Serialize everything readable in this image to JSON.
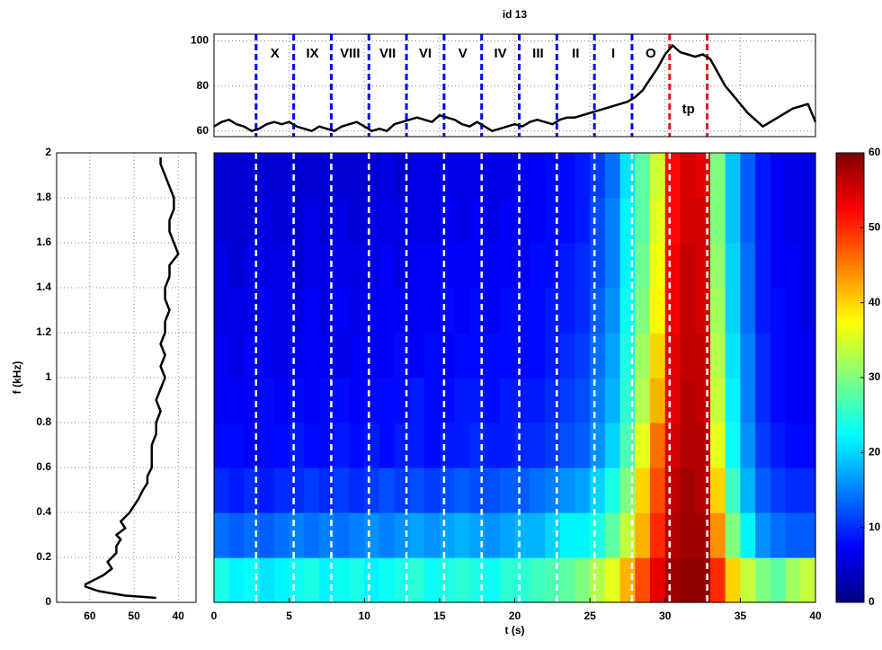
{
  "chart_data": [
    {
      "type": "line",
      "title": "id 13",
      "x": [
        0,
        0.5,
        1,
        1.5,
        2,
        2.5,
        3,
        3.5,
        4,
        4.5,
        5,
        5.5,
        6,
        6.5,
        7,
        7.5,
        8,
        8.5,
        9,
        9.5,
        10,
        10.5,
        11,
        11.5,
        12,
        12.5,
        13,
        13.5,
        14,
        14.5,
        15,
        15.5,
        16,
        16.5,
        17,
        17.5,
        18,
        18.5,
        19,
        19.5,
        20,
        20.5,
        21,
        21.5,
        22,
        22.5,
        23,
        23.5,
        24,
        24.5,
        25,
        25.5,
        26,
        26.5,
        27,
        27.5,
        28,
        28.5,
        29,
        29.5,
        30,
        30.5,
        31,
        31.5,
        32,
        32.5,
        33,
        33.5,
        34,
        34.5,
        35,
        35.5,
        36,
        36.5,
        37,
        37.5,
        38,
        38.5,
        39,
        39.5,
        40
      ],
      "values": [
        62,
        64,
        65,
        63,
        62,
        60,
        61,
        63,
        64,
        63,
        64,
        62,
        61,
        60,
        62,
        61,
        60,
        62,
        63,
        64,
        62,
        60,
        61,
        60,
        63,
        64,
        65,
        66,
        65,
        64,
        67,
        66,
        65,
        63,
        62,
        64,
        62,
        60,
        61,
        62,
        63,
        62,
        64,
        65,
        64,
        63,
        65,
        66,
        66,
        67,
        68,
        69,
        70,
        71,
        72,
        73,
        75,
        78,
        83,
        88,
        94,
        98,
        95,
        94,
        93,
        94,
        92,
        86,
        80,
        76,
        72,
        68,
        65,
        62,
        64,
        66,
        68,
        70,
        71,
        72,
        64
      ],
      "color": "#000000",
      "xlim": [
        0,
        40
      ],
      "ylim": [
        57.5,
        103
      ],
      "yticks": [
        60,
        80,
        100
      ],
      "grid": true,
      "segments": [
        {
          "label": "X",
          "start": 2.8,
          "end": 5.3,
          "color": "#0000ff"
        },
        {
          "label": "IX",
          "start": 5.3,
          "end": 7.8,
          "color": "#0000ff"
        },
        {
          "label": "VIII",
          "start": 7.8,
          "end": 10.3,
          "color": "#0000ff"
        },
        {
          "label": "VII",
          "start": 10.3,
          "end": 12.8,
          "color": "#0000ff"
        },
        {
          "label": "VI",
          "start": 12.8,
          "end": 15.3,
          "color": "#0000ff"
        },
        {
          "label": "V",
          "start": 15.3,
          "end": 17.8,
          "color": "#0000ff"
        },
        {
          "label": "IV",
          "start": 17.8,
          "end": 20.3,
          "color": "#0000ff"
        },
        {
          "label": "III",
          "start": 20.3,
          "end": 22.8,
          "color": "#0000ff"
        },
        {
          "label": "II",
          "start": 22.8,
          "end": 25.3,
          "color": "#0000ff"
        },
        {
          "label": "I",
          "start": 25.3,
          "end": 27.8,
          "color": "#0000ff"
        },
        {
          "label": "O",
          "start": 27.8,
          "end": 30.3,
          "color": "#0000ff"
        },
        {
          "label": "tp",
          "start": 30.3,
          "end": 32.8,
          "color": "#e8141e"
        }
      ]
    },
    {
      "type": "line",
      "ylabel": "f (kHz)",
      "y": [
        0.02,
        0.03,
        0.05,
        0.07,
        0.08,
        0.1,
        0.12,
        0.15,
        0.18,
        0.2,
        0.22,
        0.25,
        0.28,
        0.3,
        0.33,
        0.36,
        0.4,
        0.43,
        0.46,
        0.5,
        0.53,
        0.56,
        0.6,
        0.65,
        0.7,
        0.75,
        0.8,
        0.85,
        0.9,
        0.95,
        1.0,
        1.05,
        1.1,
        1.15,
        1.2,
        1.25,
        1.3,
        1.35,
        1.4,
        1.45,
        1.5,
        1.55,
        1.6,
        1.65,
        1.7,
        1.75,
        1.8,
        1.85,
        1.9,
        1.95,
        1.98
      ],
      "values": [
        45,
        52,
        58,
        61,
        61,
        59,
        57,
        55,
        56,
        55,
        54,
        54,
        53,
        54,
        52,
        53,
        51,
        50,
        49,
        48,
        47,
        47,
        46,
        46,
        46,
        45,
        45,
        44,
        45,
        44,
        43,
        44,
        43,
        44,
        43,
        43,
        42,
        43,
        43,
        42,
        42,
        40,
        41,
        42,
        42,
        41,
        41,
        42,
        43,
        44,
        44
      ],
      "color": "#000000",
      "xlim": [
        67.5,
        36
      ],
      "xticks": [
        60,
        50,
        40
      ],
      "ylim": [
        0,
        2
      ],
      "yticks": [
        0,
        0.2,
        0.4,
        0.6,
        0.8,
        1,
        1.2,
        1.4,
        1.6,
        1.8,
        2
      ],
      "grid": true
    },
    {
      "type": "heatmap",
      "xlabel": "t (s)",
      "colormap": "jet",
      "xlim": [
        0,
        40
      ],
      "xticks": [
        0,
        5,
        10,
        15,
        20,
        25,
        30,
        35,
        40
      ],
      "ylim": [
        0,
        2
      ],
      "clim": [
        0,
        60
      ],
      "cticks": [
        0,
        10,
        20,
        30,
        40,
        50,
        60
      ],
      "z": [
        [
          24,
          22,
          23,
          21,
          22,
          23,
          24,
          22,
          23,
          24,
          22,
          23,
          24,
          25,
          23,
          24,
          25,
          24,
          23,
          25,
          25,
          26,
          27,
          28,
          30,
          33,
          36,
          42,
          48,
          54,
          58,
          59,
          59,
          50,
          40,
          34,
          30,
          28,
          32,
          34
        ],
        [
          14,
          13,
          14,
          13,
          14,
          15,
          14,
          15,
          14,
          15,
          16,
          15,
          16,
          17,
          16,
          17,
          18,
          17,
          16,
          17,
          18,
          18,
          20,
          22,
          22,
          24,
          28,
          34,
          42,
          50,
          57,
          58,
          58,
          44,
          30,
          22,
          16,
          14,
          13,
          13
        ],
        [
          10,
          9,
          10,
          9,
          10,
          10,
          11,
          10,
          11,
          10,
          11,
          12,
          11,
          12,
          11,
          12,
          13,
          12,
          12,
          13,
          13,
          14,
          15,
          16,
          17,
          20,
          24,
          30,
          40,
          48,
          56,
          58,
          57,
          40,
          26,
          18,
          13,
          11,
          10,
          10
        ],
        [
          8,
          8,
          7,
          8,
          8,
          9,
          8,
          8,
          9,
          8,
          9,
          8,
          9,
          9,
          8,
          9,
          9,
          10,
          9,
          9,
          10,
          10,
          11,
          12,
          13,
          16,
          20,
          27,
          36,
          46,
          55,
          57,
          57,
          36,
          23,
          16,
          11,
          9,
          8,
          8
        ],
        [
          7,
          7,
          7,
          8,
          7,
          8,
          7,
          8,
          8,
          7,
          8,
          8,
          8,
          9,
          8,
          8,
          9,
          9,
          8,
          9,
          9,
          9,
          10,
          11,
          12,
          15,
          18,
          25,
          33,
          42,
          54,
          57,
          56,
          34,
          22,
          15,
          10,
          8,
          7,
          7
        ],
        [
          7,
          6,
          7,
          7,
          6,
          7,
          7,
          7,
          6,
          7,
          7,
          7,
          8,
          7,
          8,
          7,
          8,
          8,
          8,
          8,
          8,
          8,
          9,
          10,
          11,
          14,
          17,
          24,
          32,
          40,
          54,
          56,
          56,
          33,
          21,
          15,
          10,
          8,
          7,
          7
        ],
        [
          6,
          6,
          6,
          7,
          6,
          6,
          7,
          6,
          7,
          6,
          7,
          7,
          7,
          7,
          7,
          8,
          7,
          8,
          7,
          8,
          8,
          8,
          9,
          9,
          10,
          13,
          16,
          23,
          30,
          38,
          53,
          56,
          55,
          32,
          20,
          14,
          9,
          8,
          7,
          6
        ],
        [
          6,
          5,
          6,
          6,
          6,
          5,
          6,
          6,
          6,
          6,
          6,
          7,
          6,
          7,
          7,
          7,
          7,
          7,
          7,
          7,
          7,
          8,
          8,
          9,
          10,
          12,
          15,
          22,
          29,
          37,
          53,
          56,
          55,
          31,
          20,
          14,
          9,
          7,
          7,
          6
        ],
        [
          5,
          5,
          5,
          6,
          5,
          5,
          6,
          5,
          6,
          5,
          6,
          6,
          6,
          6,
          6,
          7,
          6,
          7,
          6,
          7,
          7,
          7,
          8,
          8,
          9,
          12,
          15,
          22,
          28,
          36,
          52,
          55,
          55,
          30,
          19,
          13,
          9,
          7,
          6,
          6
        ],
        [
          5,
          5,
          5,
          5,
          5,
          5,
          5,
          5,
          5,
          5,
          5,
          6,
          5,
          6,
          6,
          6,
          6,
          6,
          6,
          6,
          7,
          7,
          8,
          8,
          9,
          11,
          14,
          21,
          28,
          35,
          52,
          55,
          54,
          30,
          19,
          13,
          9,
          7,
          6,
          6
        ]
      ]
    }
  ]
}
